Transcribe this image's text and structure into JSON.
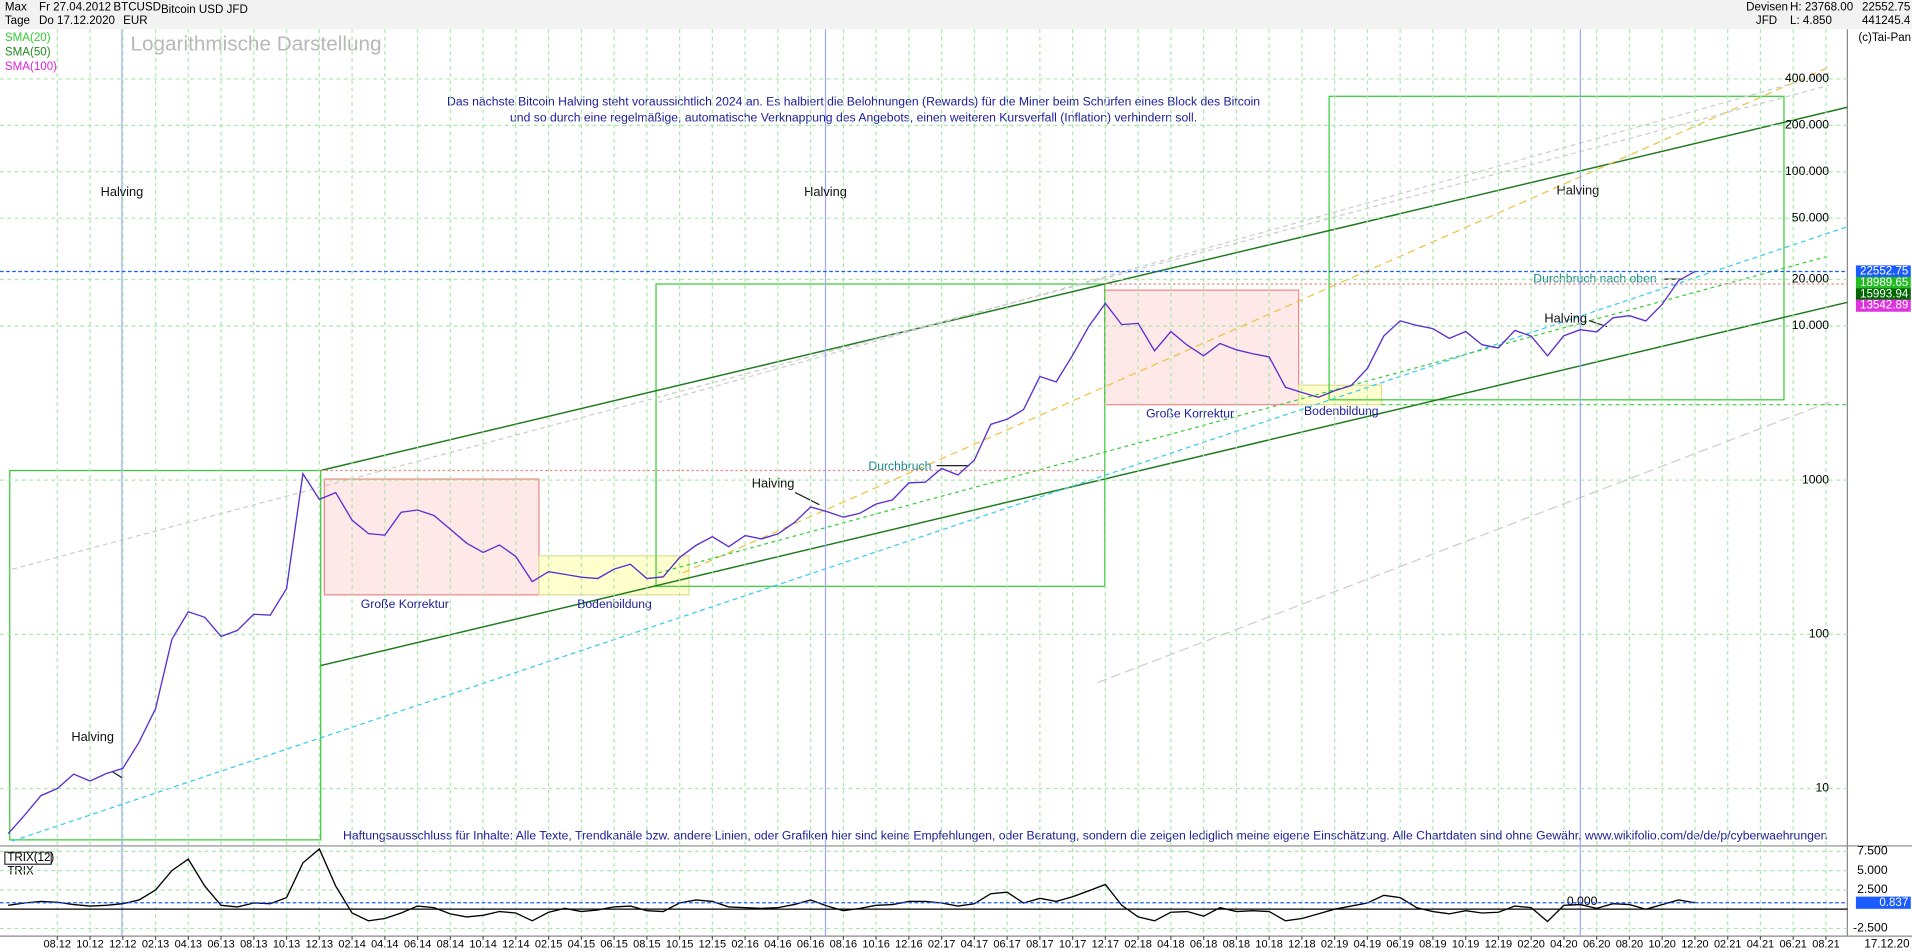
{
  "header": {
    "range": "Max",
    "start": "Fr 27.04.2012",
    "symbol": "BTCUSD",
    "name": "Bitcoin USD JFD",
    "period": "Tage",
    "end": "Do 17.12.2020",
    "currency": "EUR",
    "market": "Devisen",
    "high": "H: 23768.00",
    "broker": "JFD",
    "low": "L: 4.850",
    "last": "22552.75",
    "scale_top": "441245.4",
    "copyright": "(c)Tai-Pan",
    "axis_end": "17.12.20"
  },
  "chart_data": [
    {
      "type": "line",
      "title": "Logarithmische Darstellung",
      "log_scale": true,
      "grid": true,
      "indicators": [
        {
          "name": "SMA(20)",
          "color": "#33cc33"
        },
        {
          "name": "SMA(50)",
          "color": "#228822"
        },
        {
          "name": "SMA(100)",
          "color": "#dd22dd"
        }
      ],
      "categories": [
        null,
        null,
        null,
        "08.12",
        null,
        "10.12",
        null,
        "12.12",
        null,
        "02.13",
        null,
        "04.13",
        null,
        "06.13",
        null,
        "08.13",
        null,
        "10.13",
        null,
        "12.13",
        null,
        "02.14",
        null,
        "04.14",
        null,
        "06.14",
        null,
        "08.14",
        null,
        "10.14",
        null,
        "12.14",
        null,
        "02.15",
        null,
        "04.15",
        null,
        "06.15",
        null,
        "08.15",
        null,
        "10.15",
        null,
        "12.15",
        null,
        "02.16",
        null,
        "04.16",
        null,
        "06.16",
        null,
        "08.16",
        null,
        "10.16",
        null,
        "12.16",
        null,
        "02.17",
        null,
        "04.17",
        null,
        "06.17",
        null,
        "08.17",
        null,
        "10.17",
        null,
        "12.17",
        null,
        "02.18",
        null,
        "04.18",
        null,
        "06.18",
        null,
        "08.18",
        null,
        "10.18",
        null,
        "12.18",
        null,
        "02.19",
        null,
        "04.19",
        null,
        "06.19",
        null,
        "08.19",
        null,
        "10.19",
        null,
        "12.19",
        null,
        "02.20",
        null,
        "04.20",
        null,
        "06.20",
        null,
        "08.20",
        null,
        "10.20",
        null,
        "12.20",
        null,
        "02.21",
        null,
        "04.21",
        null,
        "06.21",
        null,
        "08.21",
        null
      ],
      "series": [
        {
          "name": "BTCUSD",
          "color": "#5a2fd0",
          "values": [
            5.1,
            6.7,
            9,
            10,
            12.4,
            11.2,
            12.5,
            13.5,
            20,
            33,
            93,
            140,
            129,
            97,
            106,
            135,
            133,
            198,
            1100,
            750,
            830,
            550,
            450,
            440,
            620,
            640,
            590,
            480,
            390,
            340,
            380,
            320,
            220,
            255,
            245,
            235,
            230,
            265,
            285,
            230,
            236,
            315,
            378,
            430,
            370,
            437,
            416,
            448,
            530,
            670,
            625,
            575,
            610,
            700,
            745,
            960,
            970,
            1190,
            1080,
            1350,
            2300,
            2480,
            2870,
            4700,
            4340,
            6450,
            10000,
            14000,
            10200,
            10400,
            6900,
            9200,
            7500,
            6400,
            7700,
            7000,
            6600,
            6300,
            4000,
            3700,
            3450,
            3800,
            4100,
            5300,
            8600,
            10800,
            10100,
            9600,
            8300,
            9200,
            7550,
            7200,
            9350,
            8600,
            6400,
            8650,
            9450,
            9150,
            11300,
            11650,
            10780,
            13800,
            19700,
            22552.75,
            null,
            null,
            null,
            null,
            null,
            null,
            null,
            null,
            null
          ]
        }
      ],
      "ylim": [
        4.4,
        1300000
      ],
      "yticks": [
        {
          "value": 400000,
          "label": "400.000"
        },
        {
          "value": 200000,
          "label": "200.000"
        },
        {
          "value": 100000,
          "label": "100.000"
        },
        {
          "value": 50000,
          "label": "50.000"
        },
        {
          "value": 20000,
          "label": "20.000"
        },
        {
          "value": 10000,
          "label": "10.000"
        },
        1000,
        100,
        10
      ],
      "value_badges": [
        {
          "value": 22552.75,
          "color": "#1a5cff"
        },
        {
          "value": 18989.65,
          "color": "#22bb22"
        },
        {
          "value": 15993.94,
          "color": "#006600"
        },
        {
          "value": 13542.89,
          "color": "#dd33dd"
        }
      ],
      "annotations": [
        "Das nächste Bitcoin Halving steht voraussichtlich 2024 an. Es halbiert die Belohnungen (Rewards) für die Miner beim Schürfen eines Block des Bitcoin",
        "und so durch eine regelmäßige, automatische Verknappung des Angebots, einen weiteren Kursverfall (Inflation) verhindern soll.",
        "Halving",
        "Halving",
        "Halving",
        "Halving",
        "Halving",
        "Halving",
        "Große Korrektur",
        "Große Korrektur",
        "Bodenbildung",
        "Bodenbildung",
        "Durchbruch",
        "Durchbruch nach oben",
        "Haftungsausschluss für Inhalte: Alle Texte, Trendkanäle bzw. andere Linien, oder Grafiken hier sind keine Empfehlungen, oder Beratung, sondern die zeigen lediglich meine eigene Einschätzung. Alle Chartdaten sind ohne Gewähr.  www.wikifolio.com/de/de/p/cyberwaehrungen"
      ]
    },
    {
      "type": "line",
      "title": "TRIX(12)",
      "subtitle": "TRIX",
      "series": [
        {
          "name": "TRIX",
          "color": "#000000",
          "values": [
            0.5,
            0.8,
            1.0,
            0.9,
            0.6,
            0.4,
            0.5,
            0.7,
            1.2,
            2.5,
            5.0,
            6.5,
            3.0,
            0.5,
            0.3,
            0.8,
            0.7,
            1.5,
            6.0,
            7.8,
            3.0,
            -0.5,
            -1.5,
            -1.2,
            -0.5,
            0.4,
            0.2,
            -0.6,
            -1.0,
            -0.8,
            -0.3,
            -0.5,
            -1.5,
            -0.4,
            0.1,
            -0.3,
            -0.1,
            0.3,
            0.4,
            -0.2,
            -0.3,
            0.8,
            1.2,
            1.0,
            0.3,
            0.2,
            0.1,
            0.2,
            0.6,
            1.2,
            0.4,
            -0.2,
            0.1,
            0.5,
            0.6,
            1.0,
            1.0,
            0.8,
            0.4,
            0.7,
            2.0,
            2.2,
            0.8,
            1.4,
            1.0,
            1.6,
            2.4,
            3.2,
            0.5,
            -1.0,
            -1.5,
            -0.4,
            -0.3,
            -0.9,
            0.2,
            -0.3,
            -0.2,
            -0.3,
            -1.5,
            -1.2,
            -0.6,
            0.0,
            0.4,
            0.8,
            1.8,
            1.5,
            0.2,
            -0.3,
            -0.6,
            -0.2,
            -0.5,
            -0.4,
            0.4,
            0.2,
            -1.6,
            0.5,
            0.6,
            0.1,
            0.7,
            0.6,
            0.0,
            0.6,
            1.2,
            0.837,
            null,
            null,
            null,
            null,
            null,
            null,
            null,
            null,
            null
          ]
        }
      ],
      "ylim": [
        -3.5,
        8.2
      ],
      "yticks": [
        {
          "value": 7.5,
          "label": "7.500"
        },
        {
          "value": 5,
          "label": "5.000"
        },
        {
          "value": 2.5,
          "label": "2.500"
        },
        {
          "value": 0,
          "label": "0.000"
        },
        {
          "value": -2.5,
          "label": "-2.500"
        }
      ],
      "value_badges": [
        {
          "value": 0.837,
          "color": "#1a5cff"
        }
      ]
    }
  ]
}
